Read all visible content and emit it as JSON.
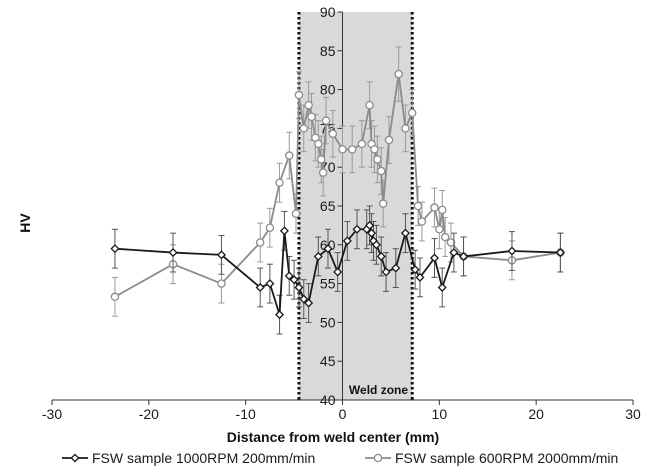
{
  "chart_data": {
    "type": "line",
    "title": "",
    "xlabel": "Distance from weld center (mm)",
    "ylabel": "HV",
    "xlim": [
      -30,
      30
    ],
    "ylim": [
      40,
      90
    ],
    "x_ticks": [
      -30,
      -20,
      -10,
      0,
      10,
      20,
      30
    ],
    "y_ticks": [
      40,
      45,
      50,
      55,
      60,
      65,
      70,
      75,
      80,
      85,
      90
    ],
    "grid": false,
    "legend_position": "bottom",
    "region": {
      "label": "Weld zone",
      "x_start": -4.5,
      "x_end": 7.2,
      "fill_color": "#d9d9d9",
      "border_style": "dotted"
    },
    "series": [
      {
        "name": "FSW sample 1000RPM 200mm/min",
        "marker": "diamond",
        "color": "#1a1a1a",
        "points": [
          {
            "x": -23.5,
            "y": 59.5,
            "err": 2.5
          },
          {
            "x": -17.5,
            "y": 59.0,
            "err": 2.5
          },
          {
            "x": -12.5,
            "y": 58.7,
            "err": 2.5
          },
          {
            "x": -8.5,
            "y": 54.5,
            "err": 2.5
          },
          {
            "x": -7.5,
            "y": 55.0,
            "err": 2.5
          },
          {
            "x": -6.5,
            "y": 51.0,
            "err": 2.5
          },
          {
            "x": -6.0,
            "y": 61.8,
            "err": 2.5
          },
          {
            "x": -5.5,
            "y": 56.0,
            "err": 2.5
          },
          {
            "x": -5.0,
            "y": 55.5,
            "err": 2.5
          },
          {
            "x": -4.5,
            "y": 54.5,
            "err": 2.5
          },
          {
            "x": -4.0,
            "y": 53.0,
            "err": 2.5
          },
          {
            "x": -3.5,
            "y": 52.5,
            "err": 2.5
          },
          {
            "x": -2.5,
            "y": 58.5,
            "err": 2.5
          },
          {
            "x": -1.5,
            "y": 59.5,
            "err": 2.5
          },
          {
            "x": -0.5,
            "y": 56.5,
            "err": 2.5
          },
          {
            "x": 0.5,
            "y": 60.5,
            "err": 2.5
          },
          {
            "x": 1.5,
            "y": 62.0,
            "err": 2.5
          },
          {
            "x": 2.5,
            "y": 62.0,
            "err": 2.5
          },
          {
            "x": 2.8,
            "y": 62.5,
            "err": 2.5
          },
          {
            "x": 3.0,
            "y": 61.5,
            "err": 2.5
          },
          {
            "x": 3.2,
            "y": 60.5,
            "err": 2.5
          },
          {
            "x": 3.5,
            "y": 60.0,
            "err": 2.5
          },
          {
            "x": 4.0,
            "y": 58.5,
            "err": 2.5
          },
          {
            "x": 4.5,
            "y": 56.5,
            "err": 2.5
          },
          {
            "x": 5.5,
            "y": 57.0,
            "err": 2.5
          },
          {
            "x": 6.5,
            "y": 61.5,
            "err": 2.5
          },
          {
            "x": 7.5,
            "y": 56.8,
            "err": 2.5
          },
          {
            "x": 8.0,
            "y": 55.8,
            "err": 2.5
          },
          {
            "x": 9.5,
            "y": 58.3,
            "err": 2.5
          },
          {
            "x": 10.3,
            "y": 54.5,
            "err": 2.5
          },
          {
            "x": 11.5,
            "y": 59.0,
            "err": 2.5
          },
          {
            "x": 12.5,
            "y": 58.5,
            "err": 2.5
          },
          {
            "x": 17.5,
            "y": 59.2,
            "err": 2.5
          },
          {
            "x": 22.5,
            "y": 59.0,
            "err": 2.5
          }
        ]
      },
      {
        "name": "FSW sample 600RPM 2000mm/min",
        "marker": "circle",
        "color": "#8c8c8c",
        "points": [
          {
            "x": -23.5,
            "y": 53.3,
            "err": 2.5
          },
          {
            "x": -17.5,
            "y": 57.5,
            "err": 2.5
          },
          {
            "x": -12.5,
            "y": 55.0,
            "err": 2.5
          },
          {
            "x": -8.5,
            "y": 60.3,
            "err": 2.5
          },
          {
            "x": -7.5,
            "y": 62.2,
            "err": 2.5
          },
          {
            "x": -6.5,
            "y": 68.0,
            "err": 2.5
          },
          {
            "x": -5.5,
            "y": 71.5,
            "err": 3.0
          },
          {
            "x": -4.8,
            "y": 64.0,
            "err": 2.5
          },
          {
            "x": -4.5,
            "y": 79.3,
            "err": 3.0
          },
          {
            "x": -4.0,
            "y": 75.0,
            "err": 3.0
          },
          {
            "x": -3.5,
            "y": 78.0,
            "err": 3.0
          },
          {
            "x": -3.2,
            "y": 76.5,
            "err": 3.0
          },
          {
            "x": -2.8,
            "y": 73.8,
            "err": 3.0
          },
          {
            "x": -2.5,
            "y": 73.0,
            "err": 3.0
          },
          {
            "x": -2.2,
            "y": 71.0,
            "err": 3.0
          },
          {
            "x": -2.0,
            "y": 69.3,
            "err": 3.0
          },
          {
            "x": -1.7,
            "y": 76.0,
            "err": 3.0
          },
          {
            "x": -1.0,
            "y": 74.3,
            "err": 3.0
          },
          {
            "x": 0.0,
            "y": 72.3,
            "err": 3.0
          },
          {
            "x": 1.0,
            "y": 72.3,
            "err": 3.0
          },
          {
            "x": 2.0,
            "y": 73.0,
            "err": 3.0
          },
          {
            "x": 2.8,
            "y": 78.0,
            "err": 3.0
          },
          {
            "x": 3.0,
            "y": 73.0,
            "err": 3.0
          },
          {
            "x": 3.3,
            "y": 72.3,
            "err": 3.0
          },
          {
            "x": 3.6,
            "y": 71.0,
            "err": 3.0
          },
          {
            "x": 4.0,
            "y": 69.5,
            "err": 3.0
          },
          {
            "x": 4.2,
            "y": 65.3,
            "err": 3.0
          },
          {
            "x": 4.8,
            "y": 73.5,
            "err": 3.0
          },
          {
            "x": 5.8,
            "y": 82.0,
            "err": 3.5
          },
          {
            "x": 6.5,
            "y": 75.0,
            "err": 3.0
          },
          {
            "x": 7.2,
            "y": 77.0,
            "err": 3.0
          },
          {
            "x": 7.8,
            "y": 65.0,
            "err": 2.5
          },
          {
            "x": 8.2,
            "y": 63.0,
            "err": 2.5
          },
          {
            "x": 9.5,
            "y": 64.8,
            "err": 2.5
          },
          {
            "x": 10.0,
            "y": 62.0,
            "err": 2.5
          },
          {
            "x": 10.3,
            "y": 64.5,
            "err": 2.5
          },
          {
            "x": 10.6,
            "y": 61.0,
            "err": 2.5
          },
          {
            "x": 11.2,
            "y": 60.3,
            "err": 2.5
          },
          {
            "x": 12.5,
            "y": 58.5,
            "err": 2.5
          },
          {
            "x": 17.5,
            "y": 58.0,
            "err": 2.5
          },
          {
            "x": 22.5,
            "y": 59.0,
            "err": 2.5
          }
        ]
      }
    ]
  }
}
